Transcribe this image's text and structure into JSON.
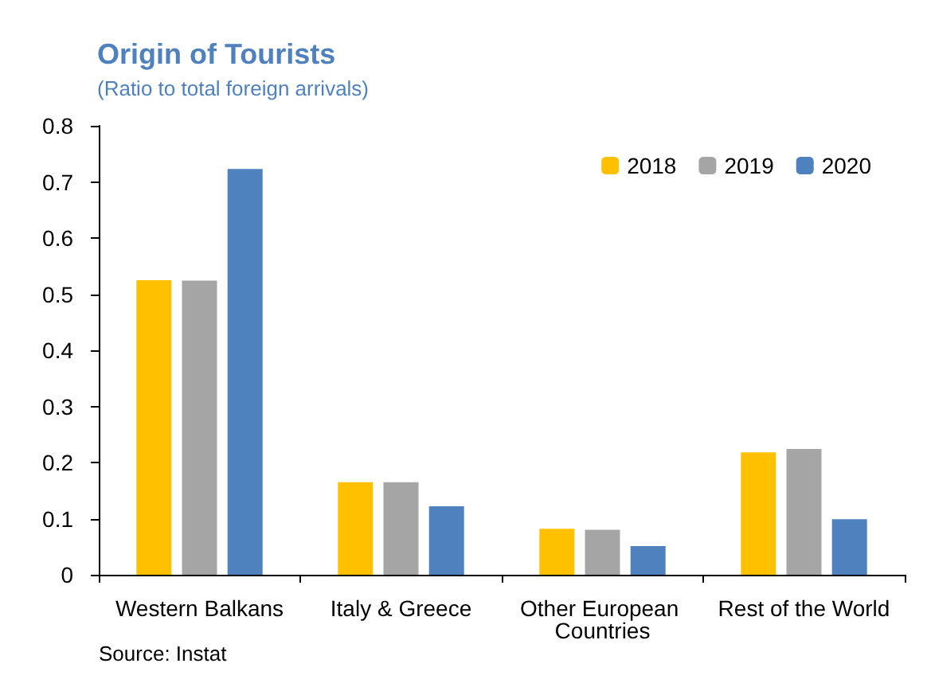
{
  "chart_data": {
    "type": "bar",
    "title": "Origin of Tourists",
    "subtitle": "(Ratio to total foreign arrivals)",
    "categories": [
      "Western Balkans",
      "Italy & Greece",
      "Other European Countries",
      "Rest of the World"
    ],
    "series": [
      {
        "name": "2018",
        "color": "#ffc000",
        "values": [
          0.525,
          0.165,
          0.082,
          0.218
        ]
      },
      {
        "name": "2019",
        "color": "#a5a5a5",
        "values": [
          0.524,
          0.165,
          0.08,
          0.224
        ]
      },
      {
        "name": "2020",
        "color": "#4e81bd",
        "values": [
          0.723,
          0.122,
          0.051,
          0.099
        ]
      }
    ],
    "ylim": [
      0,
      0.8
    ],
    "yticks": [
      0,
      0.1,
      0.2,
      0.3,
      0.4,
      0.5,
      0.6,
      0.7,
      0.8
    ],
    "grid": false,
    "legend": "top right",
    "annotations": [
      "Source: Instat"
    ]
  }
}
